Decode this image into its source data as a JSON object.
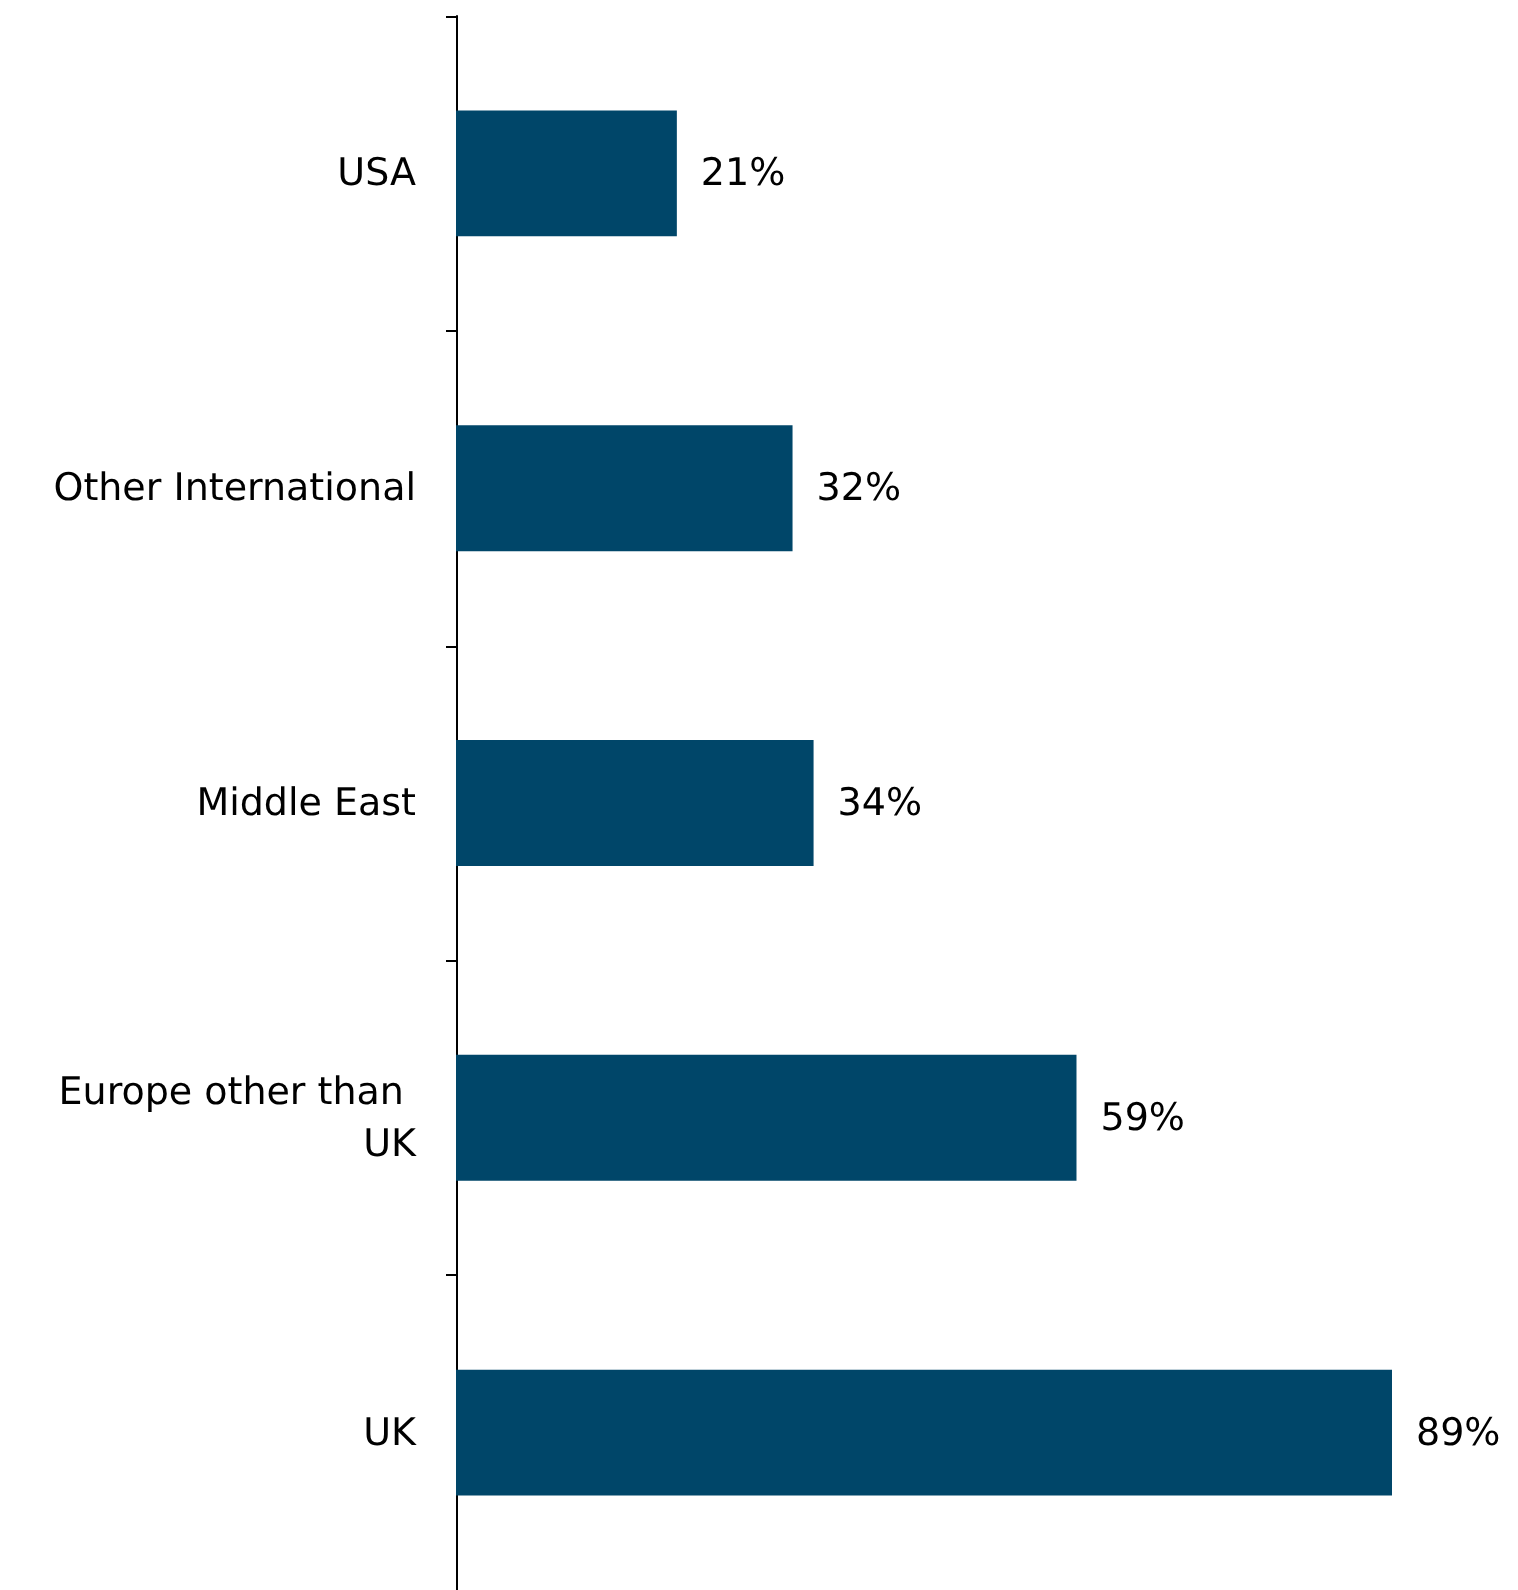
{
  "chart_data": {
    "type": "bar",
    "orientation": "horizontal",
    "categories": [
      "USA",
      "Other International",
      "Middle East",
      "Europe other than UK",
      "UK"
    ],
    "values": [
      21,
      32,
      34,
      59,
      89
    ],
    "value_labels": [
      "21%",
      "32%",
      "34%",
      "59%",
      "89%"
    ],
    "color": "#004669"
  }
}
